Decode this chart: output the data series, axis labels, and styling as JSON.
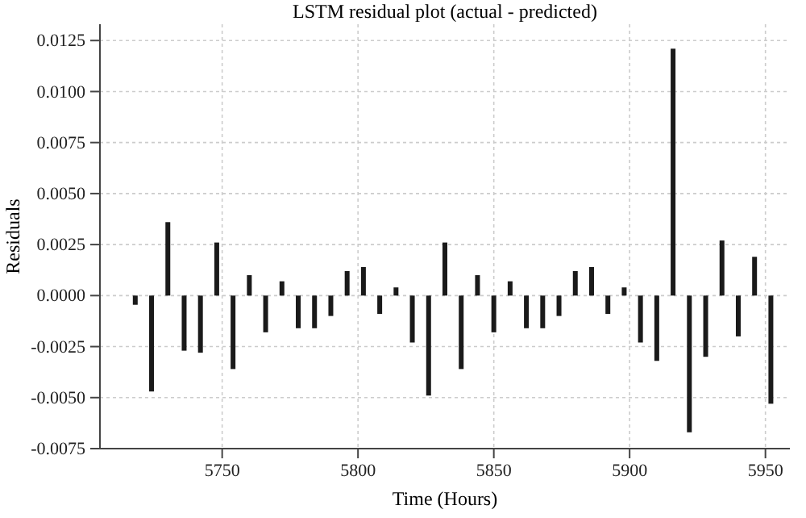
{
  "chart_data": {
    "type": "bar",
    "title": "LSTM residual plot (actual - predicted)",
    "xlabel": "Time (Hours)",
    "ylabel": "Residuals",
    "x": [
      5718,
      5724,
      5730,
      5736,
      5742,
      5748,
      5754,
      5760,
      5766,
      5772,
      5778,
      5784,
      5790,
      5796,
      5802,
      5808,
      5814,
      5820,
      5826,
      5832,
      5838,
      5844,
      5850,
      5856,
      5862,
      5868,
      5874,
      5880,
      5886,
      5892,
      5898,
      5904,
      5910,
      5916,
      5922,
      5928,
      5934,
      5940,
      5946,
      5952
    ],
    "values": [
      -0.00045,
      -0.0047,
      0.0036,
      -0.0027,
      -0.0028,
      0.0026,
      -0.0036,
      0.001,
      -0.0018,
      0.0007,
      -0.0016,
      -0.0016,
      -0.001,
      0.0012,
      0.0014,
      -0.0009,
      0.0004,
      -0.0023,
      -0.0049,
      0.0026,
      -0.0036,
      0.001,
      -0.0018,
      0.0007,
      -0.0016,
      -0.0016,
      -0.001,
      0.0012,
      0.0014,
      -0.0009,
      0.0004,
      -0.0023,
      -0.0032,
      0.0121,
      -0.0067,
      -0.003,
      0.0027,
      -0.002,
      0.0019,
      -0.0053
    ],
    "color": "#1a1a1a",
    "xlim": [
      5705,
      5959
    ],
    "xticks": [
      5750,
      5800,
      5850,
      5900,
      5950
    ],
    "ylim": [
      -0.0075,
      0.0133
    ],
    "yticks": [
      {
        "value": -0.0075,
        "label": "-0.0075"
      },
      {
        "value": -0.005,
        "label": "-0.0050"
      },
      {
        "value": -0.0025,
        "label": "-0.0025"
      },
      {
        "value": 0,
        "label": "0.0000"
      },
      {
        "value": 0.0025,
        "label": "0.0025"
      },
      {
        "value": 0.005,
        "label": "0.0050"
      },
      {
        "value": 0.0075,
        "label": "0.0075"
      },
      {
        "value": 0.01,
        "label": "0.0100"
      },
      {
        "value": 0.0125,
        "label": "0.0125"
      }
    ],
    "grid": true
  }
}
